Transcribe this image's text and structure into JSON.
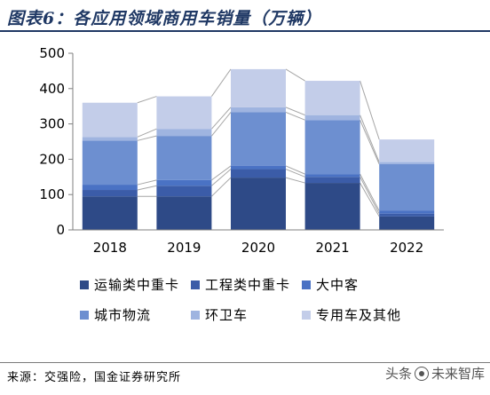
{
  "header": {
    "title": "图表6：各应用领域商用车销量（万辆）"
  },
  "chart_data": {
    "type": "bar",
    "stacked": true,
    "categories": [
      "2018",
      "2019",
      "2020",
      "2021",
      "2022"
    ],
    "ylim": [
      0,
      500
    ],
    "yticks": [
      0,
      100,
      200,
      300,
      400,
      500
    ],
    "grid": false,
    "legend_position": "bottom",
    "series": [
      {
        "name": "运输类中重卡",
        "color": "#2e4a87",
        "values": [
          95,
          95,
          148,
          133,
          38
        ]
      },
      {
        "name": "工程类中重卡",
        "color": "#3b5ca8",
        "values": [
          18,
          30,
          24,
          17,
          8
        ]
      },
      {
        "name": "大中客",
        "color": "#4a72c4",
        "values": [
          15,
          16,
          9,
          8,
          8
        ]
      },
      {
        "name": "城市物流",
        "color": "#6d8fd0",
        "values": [
          125,
          125,
          152,
          153,
          132
        ]
      },
      {
        "name": "环卫车",
        "color": "#9fb4e0",
        "values": [
          10,
          20,
          14,
          14,
          6
        ]
      },
      {
        "name": "专用车及其他",
        "color": "#c3cde9",
        "values": [
          97,
          92,
          108,
          97,
          64
        ]
      }
    ]
  },
  "footer": {
    "source": "来源：交强险，国金证券研究所",
    "watermark_left": "头条",
    "watermark_right": "未来智库"
  }
}
